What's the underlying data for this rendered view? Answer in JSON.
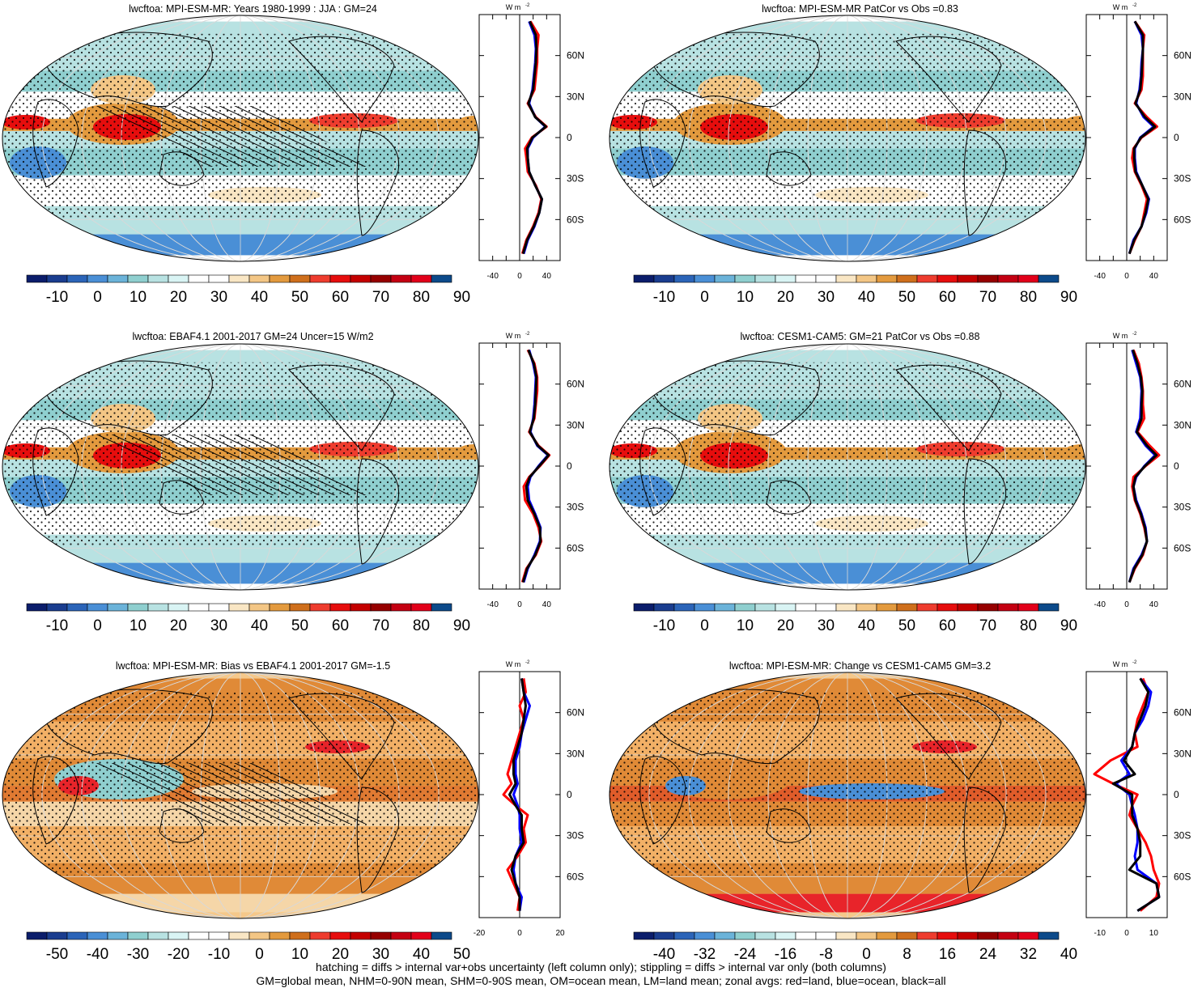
{
  "footer": {
    "line1": "hatching = diffs > internal var+obs uncertainty (left column only); stippling = diffs > internal var only (both columns)",
    "line2": "GM=global mean, NHM=0-90N mean, SHM=0-90S mean, OM=ocean mean, LM=land mean; zonal avgs: red=land, blue=ocean, black=all"
  },
  "zonal_unit": "W m",
  "zonal_unit_sup": "-2",
  "lat_ticks": [
    "60N",
    "30N",
    "0",
    "30S",
    "60S"
  ],
  "colors": {
    "land": "#ff0000",
    "ocean": "#0000ff",
    "all": "#000000"
  },
  "chart_data": [
    {
      "type": "heatmap",
      "title": "lwcftoa: MPI-ESM-MR: Years 1980-1999 : JJA : GM=24",
      "colorbar_labels": [
        "-10",
        "0",
        "10",
        "20",
        "30",
        "40",
        "50",
        "60",
        "70",
        "80",
        "90"
      ],
      "zonal": {
        "xlim": [
          -60,
          60
        ],
        "xticks": [
          "-40",
          "0",
          "40"
        ],
        "lat": [
          85,
          75,
          65,
          55,
          45,
          35,
          25,
          15,
          8,
          0,
          -8,
          -15,
          -25,
          -35,
          -45,
          -55,
          -65,
          -75,
          -85
        ],
        "land": [
          16,
          28,
          26,
          26,
          24,
          22,
          12,
          24,
          40,
          18,
          8,
          10,
          12,
          24,
          32,
          28,
          20,
          10,
          4
        ],
        "ocean": [
          14,
          22,
          24,
          23,
          21,
          19,
          14,
          23,
          38,
          20,
          12,
          12,
          14,
          23,
          33,
          29,
          22,
          12,
          6
        ],
        "all": [
          15,
          24,
          25,
          24,
          22,
          20,
          13,
          23,
          39,
          19,
          11,
          12,
          14,
          23,
          33,
          29,
          21,
          11,
          5
        ]
      }
    },
    {
      "type": "heatmap",
      "title": "lwcftoa: MPI-ESM-MR PatCor vs Obs =0.83",
      "colorbar_labels": [
        "-10",
        "0",
        "10",
        "20",
        "30",
        "40",
        "50",
        "60",
        "70",
        "80",
        "90"
      ],
      "zonal": {
        "xlim": [
          -60,
          60
        ],
        "xticks": [
          "-40",
          "0",
          "40"
        ],
        "lat": [
          85,
          75,
          65,
          55,
          45,
          35,
          25,
          15,
          8,
          0,
          -8,
          -15,
          -25,
          -35,
          -45,
          -55,
          -65,
          -75,
          -85
        ],
        "land": [
          12,
          26,
          24,
          24,
          24,
          22,
          12,
          30,
          45,
          22,
          10,
          8,
          12,
          22,
          30,
          26,
          22,
          12,
          4
        ],
        "ocean": [
          12,
          22,
          24,
          22,
          21,
          19,
          14,
          25,
          40,
          20,
          12,
          12,
          14,
          23,
          33,
          29,
          22,
          10,
          4
        ],
        "all": [
          12,
          24,
          24,
          23,
          22,
          20,
          13,
          27,
          42,
          21,
          11,
          11,
          13,
          23,
          32,
          28,
          22,
          11,
          4
        ]
      }
    },
    {
      "type": "heatmap",
      "title": "lwcftoa: EBAF4.1 2001-2017 GM=24 Uncer=15 W/m2",
      "colorbar_labels": [
        "-10",
        "0",
        "10",
        "20",
        "30",
        "40",
        "50",
        "60",
        "70",
        "80",
        "90"
      ],
      "zonal": {
        "xlim": [
          -60,
          60
        ],
        "xticks": [
          "-40",
          "0",
          "40"
        ],
        "lat": [
          85,
          75,
          65,
          55,
          45,
          35,
          25,
          15,
          8,
          0,
          -8,
          -15,
          -25,
          -35,
          -45,
          -55,
          -65,
          -75,
          -85
        ],
        "land": [
          12,
          22,
          26,
          26,
          24,
          22,
          14,
          28,
          44,
          30,
          14,
          6,
          8,
          20,
          28,
          32,
          24,
          10,
          4
        ],
        "ocean": [
          14,
          20,
          24,
          23,
          22,
          20,
          16,
          26,
          42,
          28,
          16,
          12,
          14,
          23,
          31,
          30,
          22,
          12,
          6
        ],
        "all": [
          13,
          21,
          25,
          24,
          23,
          21,
          15,
          27,
          43,
          29,
          15,
          10,
          12,
          22,
          30,
          31,
          23,
          11,
          5
        ]
      }
    },
    {
      "type": "heatmap",
      "title": "lwcftoa: CESM1-CAM5: GM=21 PatCor vs Obs =0.88",
      "colorbar_labels": [
        "-10",
        "0",
        "10",
        "20",
        "30",
        "40",
        "50",
        "60",
        "70",
        "80",
        "90"
      ],
      "zonal": {
        "xlim": [
          -60,
          60
        ],
        "xticks": [
          "-40",
          "0",
          "40"
        ],
        "lat": [
          85,
          75,
          65,
          55,
          45,
          35,
          25,
          15,
          8,
          0,
          -8,
          -15,
          -25,
          -35,
          -45,
          -55,
          -65,
          -75,
          -85
        ],
        "land": [
          10,
          18,
          22,
          24,
          24,
          26,
          16,
          34,
          48,
          28,
          10,
          8,
          12,
          20,
          26,
          30,
          24,
          12,
          4
        ],
        "ocean": [
          8,
          14,
          20,
          22,
          21,
          20,
          14,
          28,
          42,
          26,
          14,
          10,
          14,
          22,
          28,
          30,
          22,
          10,
          4
        ],
        "all": [
          9,
          16,
          21,
          23,
          22,
          22,
          15,
          30,
          44,
          27,
          13,
          10,
          13,
          21,
          27,
          30,
          23,
          11,
          4
        ]
      }
    },
    {
      "type": "heatmap",
      "title": "lwcftoa: MPI-ESM-MR: Bias vs EBAF4.1 2001-2017 GM=-1.5",
      "colorbar_labels": [
        "-50",
        "-40",
        "-30",
        "-20",
        "-10",
        "0",
        "10",
        "20",
        "30",
        "40",
        "50"
      ],
      "zonal": {
        "xlim": [
          -20,
          20
        ],
        "xticks": [
          "-20",
          "0",
          "20"
        ],
        "lat": [
          85,
          75,
          65,
          55,
          45,
          35,
          25,
          15,
          8,
          0,
          -8,
          -15,
          -25,
          -35,
          -45,
          -55,
          -65,
          -75,
          -85
        ],
        "land": [
          2,
          3,
          0,
          2,
          0,
          -2,
          -4,
          -6,
          -4,
          -8,
          -2,
          4,
          2,
          3,
          -1,
          -6,
          -3,
          0,
          -1
        ],
        "ocean": [
          1,
          2,
          5,
          3,
          1,
          0,
          -2,
          -2,
          -1,
          -3,
          -1,
          0,
          0,
          1,
          -2,
          -3,
          -2,
          1,
          0
        ],
        "all": [
          1,
          2,
          3,
          2,
          1,
          -1,
          -3,
          -3,
          -2,
          -5,
          -2,
          1,
          1,
          2,
          -2,
          -4,
          -2,
          0,
          0
        ]
      }
    },
    {
      "type": "heatmap",
      "title": "lwcftoa: MPI-ESM-MR: Change vs CESM1-CAM5 GM=3.2",
      "colorbar_labels": [
        "-40",
        "-32",
        "-24",
        "-16",
        "-8",
        "0",
        "8",
        "16",
        "24",
        "32",
        "40"
      ],
      "zonal": {
        "xlim": [
          -15,
          15
        ],
        "xticks": [
          "-10",
          "0",
          "10"
        ],
        "lat": [
          85,
          75,
          65,
          55,
          45,
          35,
          25,
          15,
          8,
          0,
          -8,
          -15,
          -25,
          -35,
          -45,
          -55,
          -65,
          -75,
          -85
        ],
        "land": [
          6,
          8,
          6,
          4,
          3,
          4,
          -6,
          -12,
          -5,
          4,
          2,
          1,
          4,
          7,
          9,
          10,
          12,
          11,
          5
        ],
        "ocean": [
          5,
          9,
          8,
          6,
          3,
          2,
          -2,
          1,
          -4,
          1,
          2,
          3,
          4,
          4,
          3,
          4,
          11,
          12,
          4
        ],
        "all": [
          5,
          8,
          7,
          5,
          3,
          2,
          -1,
          3,
          -5,
          2,
          2,
          2,
          4,
          5,
          5,
          1,
          11,
          12,
          4
        ]
      }
    }
  ]
}
